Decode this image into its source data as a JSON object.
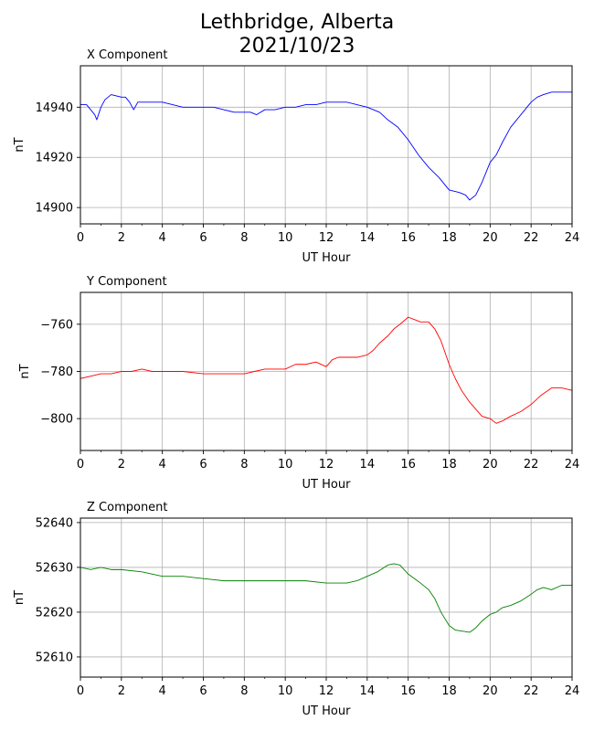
{
  "title": {
    "line1": "Lethbridge, Alberta",
    "line2": "2021/10/23"
  },
  "chart_data": [
    {
      "type": "line",
      "panel_label": "X Component",
      "xlabel": "UT Hour",
      "ylabel": "nT",
      "xlim": [
        0,
        24
      ],
      "ylim": [
        14893.5,
        14956.5
      ],
      "xticks": [
        0,
        2,
        4,
        6,
        8,
        10,
        12,
        14,
        16,
        18,
        20,
        22,
        24
      ],
      "yticks": [
        14900,
        14920,
        14940
      ],
      "grid": true,
      "color": "#0000ff",
      "series": [
        {
          "x": [
            0,
            0.3,
            0.5,
            0.7,
            0.8,
            1.0,
            1.2,
            1.5,
            2.0,
            2.2,
            2.4,
            2.6,
            2.8,
            3.0,
            3.5,
            4.0,
            4.5,
            5.0,
            5.5,
            6.0,
            6.5,
            7.0,
            7.5,
            8.0,
            8.3,
            8.6,
            9.0,
            9.5,
            10.0,
            10.5,
            11.0,
            11.5,
            12.0,
            12.5,
            13.0,
            13.5,
            14.0,
            14.3,
            14.6,
            15.0,
            15.5,
            16.0,
            16.5,
            17.0,
            17.5,
            18.0,
            18.5,
            18.8,
            19.0,
            19.3,
            19.6,
            20.0,
            20.3,
            20.6,
            21.0,
            21.5,
            22.0,
            22.3,
            22.6,
            23.0,
            23.5,
            24.0
          ],
          "values": [
            14941,
            14941,
            14939,
            14937,
            14935,
            14940,
            14943,
            14945,
            14944,
            14944,
            14942,
            14939,
            14942,
            14942,
            14942,
            14942,
            14941,
            14940,
            14940,
            14940,
            14940,
            14939,
            14938,
            14938,
            14938,
            14937,
            14939,
            14939,
            14940,
            14940,
            14941,
            14941,
            14942,
            14942,
            14942,
            14941,
            14940,
            14939,
            14938,
            14935,
            14932,
            14927,
            14921,
            14916,
            14912,
            14907,
            14906,
            14905,
            14903,
            14905,
            14910,
            14918,
            14921,
            14926,
            14932,
            14937,
            14942,
            14944,
            14945,
            14946,
            14946,
            14946
          ]
        }
      ]
    },
    {
      "type": "line",
      "panel_label": "Y Component",
      "xlabel": "UT Hour",
      "ylabel": "nT",
      "xlim": [
        0,
        24
      ],
      "ylim": [
        -813.5,
        -746.5
      ],
      "xticks": [
        0,
        2,
        4,
        6,
        8,
        10,
        12,
        14,
        16,
        18,
        20,
        22,
        24
      ],
      "yticks": [
        -760,
        -780,
        -800
      ],
      "grid": true,
      "color": "#ff0000",
      "series": [
        {
          "x": [
            0,
            0.5,
            1.0,
            1.5,
            2.0,
            2.5,
            3.0,
            3.5,
            4.0,
            5.0,
            6.0,
            7.0,
            8.0,
            8.5,
            9.0,
            9.5,
            10.0,
            10.5,
            11.0,
            11.5,
            12.0,
            12.3,
            12.6,
            13.0,
            13.5,
            14.0,
            14.3,
            14.6,
            15.0,
            15.3,
            15.6,
            16.0,
            16.3,
            16.6,
            17.0,
            17.3,
            17.6,
            18.0,
            18.3,
            18.6,
            19.0,
            19.3,
            19.6,
            20.0,
            20.3,
            20.6,
            21.0,
            21.5,
            22.0,
            22.5,
            23.0,
            23.5,
            24.0
          ],
          "values": [
            -783,
            -782,
            -781,
            -781,
            -780,
            -780,
            -779,
            -780,
            -780,
            -780,
            -781,
            -781,
            -781,
            -780,
            -779,
            -779,
            -779,
            -777,
            -777,
            -776,
            -778,
            -775,
            -774,
            -774,
            -774,
            -773,
            -771,
            -768,
            -765,
            -762,
            -760,
            -757,
            -758,
            -759,
            -759,
            -762,
            -767,
            -777,
            -783,
            -788,
            -793,
            -796,
            -799,
            -800,
            -802,
            -801,
            -799,
            -797,
            -794,
            -790,
            -787,
            -787,
            -788
          ]
        }
      ]
    },
    {
      "type": "line",
      "panel_label": "Z Component",
      "xlabel": "UT Hour",
      "ylabel": "nT",
      "xlim": [
        0,
        24
      ],
      "ylim": [
        52605.5,
        52641
      ],
      "xticks": [
        0,
        2,
        4,
        6,
        8,
        10,
        12,
        14,
        16,
        18,
        20,
        22,
        24
      ],
      "yticks": [
        52610,
        52620,
        52630,
        52640
      ],
      "grid": true,
      "color": "#008000",
      "series": [
        {
          "x": [
            0,
            0.5,
            1.0,
            1.5,
            2.0,
            3.0,
            4.0,
            5.0,
            6.0,
            7.0,
            8.0,
            9.0,
            10.0,
            11.0,
            12.0,
            12.5,
            13.0,
            13.5,
            14.0,
            14.5,
            15.0,
            15.3,
            15.6,
            16.0,
            16.3,
            16.6,
            17.0,
            17.3,
            17.6,
            18.0,
            18.3,
            18.6,
            19.0,
            19.3,
            19.6,
            20.0,
            20.3,
            20.6,
            21.0,
            21.5,
            22.0,
            22.3,
            22.6,
            23.0,
            23.5,
            24.0
          ],
          "values": [
            52630,
            52629.5,
            52630,
            52629.5,
            52629.5,
            52629,
            52628,
            52628,
            52627.5,
            52627,
            52627,
            52627,
            52627,
            52627,
            52626.5,
            52626.5,
            52626.5,
            52627,
            52628,
            52629,
            52630.5,
            52630.8,
            52630.5,
            52628.5,
            52627.5,
            52626.5,
            52625,
            52623,
            52620,
            52617,
            52616,
            52615.8,
            52615.5,
            52616.5,
            52618,
            52619.5,
            52620,
            52621,
            52621.5,
            52622.5,
            52624,
            52625,
            52625.5,
            52625,
            52626,
            52626
          ]
        }
      ]
    }
  ]
}
